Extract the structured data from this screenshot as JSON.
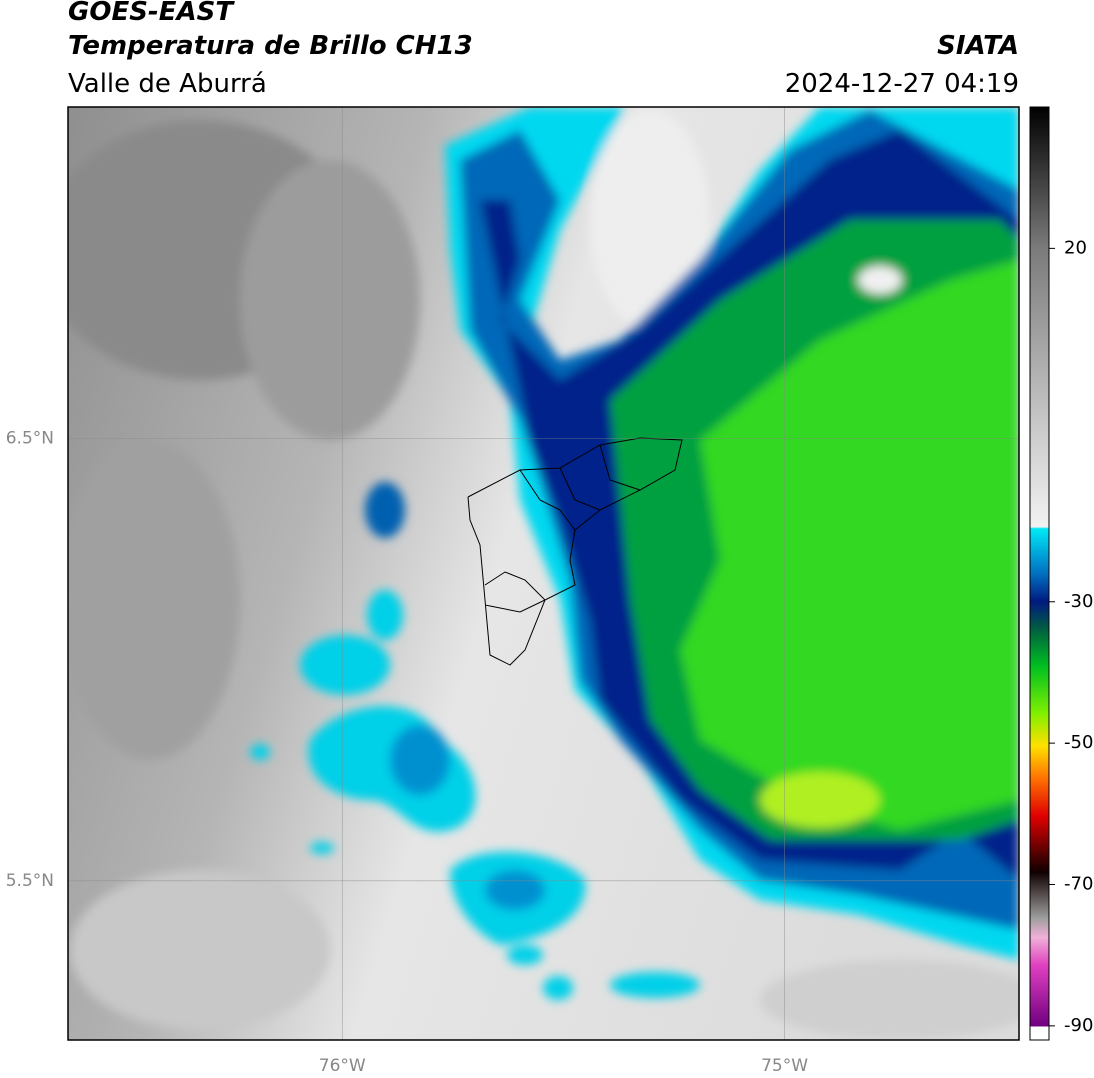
{
  "header": {
    "title": "GOES-EAST",
    "subtitle": "Temperatura de Brillo CH13",
    "region": "Valle de Aburrá",
    "source": "SIATA",
    "timestamp": "2024-12-27 04:19"
  },
  "map": {
    "lat_range": [
      5.14,
      7.25
    ],
    "lon_range": [
      -76.62,
      -74.47
    ],
    "lat_ticks": [
      {
        "value": 6.5,
        "label": "6.5°N"
      },
      {
        "value": 5.5,
        "label": "5.5°N"
      }
    ],
    "lon_ticks": [
      {
        "value": -76,
        "label": "76°W"
      },
      {
        "value": -75,
        "label": "75°W"
      }
    ]
  },
  "colorbar": {
    "range": [
      -92,
      40
    ],
    "ticks": [
      20,
      -30,
      -50,
      -70,
      -90
    ]
  }
}
